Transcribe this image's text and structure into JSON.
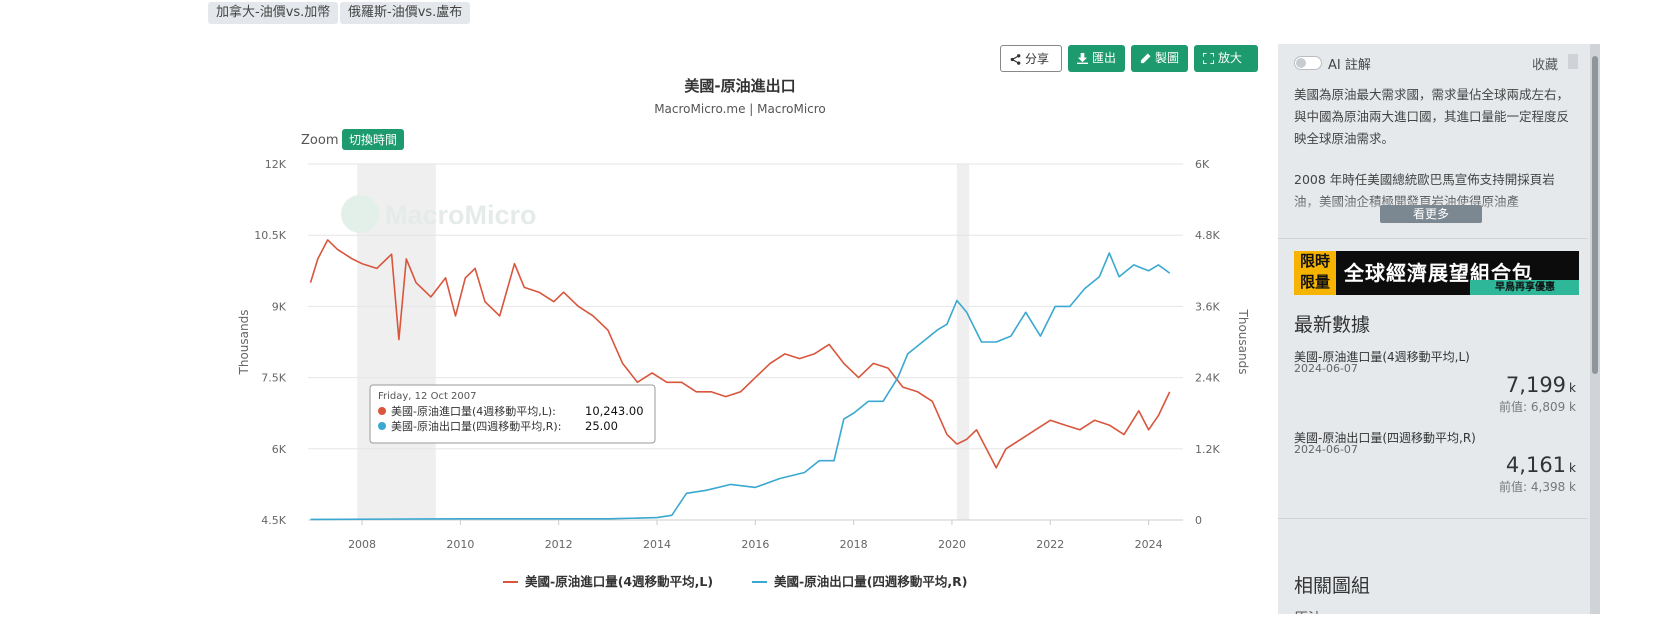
{
  "tags": [
    "加拿大-油價vs.加幣",
    "俄羅斯-油價vs.盧布"
  ],
  "toolbar": {
    "share": "分享",
    "export": "匯出",
    "draw": "製圖",
    "enlarge": "放大"
  },
  "chart_data": {
    "type": "line",
    "title": "美國-原油進出口",
    "subtitle": "MacroMicro.me | MacroMicro",
    "watermark": "MacroMicro",
    "zoom_label": "Zoom",
    "zoom_button": "切換時間",
    "left_axis": {
      "label": "Thousands",
      "ticks": [
        "4.5K",
        "6K",
        "7.5K",
        "9K",
        "10.5K",
        "12K"
      ],
      "range": [
        4500,
        12000
      ]
    },
    "right_axis": {
      "label": "Thousands",
      "ticks": [
        "0",
        "1.2K",
        "2.4K",
        "3.6K",
        "4.8K",
        "6K"
      ],
      "range": [
        0,
        6000
      ]
    },
    "x_axis": {
      "ticks": [
        "2008",
        "2010",
        "2012",
        "2014",
        "2016",
        "2018",
        "2020",
        "2022",
        "2024"
      ],
      "range": [
        2006.9,
        2024.7
      ]
    },
    "shaded_periods": [
      [
        2007.9,
        2009.5
      ],
      [
        2020.1,
        2020.35
      ]
    ],
    "series": [
      {
        "name": "美國-原油進口量(4週移動平均,L)",
        "color": "#d9553c",
        "axis": "left",
        "x": [
          2006.95,
          2007.1,
          2007.3,
          2007.5,
          2007.8,
          2008.0,
          2008.3,
          2008.6,
          2008.75,
          2008.9,
          2009.1,
          2009.4,
          2009.7,
          2009.9,
          2010.1,
          2010.3,
          2010.5,
          2010.8,
          2011.1,
          2011.3,
          2011.6,
          2011.9,
          2012.1,
          2012.4,
          2012.7,
          2013.0,
          2013.3,
          2013.6,
          2013.9,
          2014.2,
          2014.5,
          2014.8,
          2015.1,
          2015.4,
          2015.7,
          2016.0,
          2016.3,
          2016.6,
          2016.9,
          2017.2,
          2017.5,
          2017.8,
          2018.1,
          2018.4,
          2018.7,
          2019.0,
          2019.3,
          2019.6,
          2019.9,
          2020.1,
          2020.3,
          2020.5,
          2020.7,
          2020.9,
          2021.1,
          2021.4,
          2021.7,
          2022.0,
          2022.3,
          2022.6,
          2022.9,
          2023.2,
          2023.5,
          2023.8,
          2024.0,
          2024.2,
          2024.43
        ],
        "values": [
          9500,
          10000,
          10400,
          10200,
          10000,
          9900,
          9800,
          10100,
          8300,
          10000,
          9500,
          9200,
          9600,
          8800,
          9600,
          9800,
          9100,
          8800,
          9900,
          9400,
          9300,
          9100,
          9300,
          9000,
          8800,
          8500,
          7800,
          7400,
          7600,
          7400,
          7400,
          7200,
          7200,
          7100,
          7200,
          7500,
          7800,
          8000,
          7900,
          8000,
          8200,
          7800,
          7500,
          7800,
          7700,
          7300,
          7200,
          7000,
          6300,
          6100,
          6200,
          6400,
          6000,
          5600,
          6000,
          6200,
          6400,
          6600,
          6500,
          6400,
          6600,
          6500,
          6300,
          6800,
          6400,
          6700,
          7199
        ]
      },
      {
        "name": "美國-原油出口量(四週移動平均,R)",
        "color": "#3aa8d0",
        "axis": "right",
        "x": [
          2006.95,
          2010.0,
          2013.0,
          2014.0,
          2014.3,
          2014.6,
          2015.0,
          2015.5,
          2016.0,
          2016.5,
          2017.0,
          2017.3,
          2017.6,
          2017.8,
          2018.0,
          2018.3,
          2018.6,
          2018.9,
          2019.1,
          2019.4,
          2019.7,
          2019.9,
          2020.1,
          2020.3,
          2020.6,
          2020.9,
          2021.2,
          2021.5,
          2021.8,
          2022.1,
          2022.4,
          2022.7,
          2023.0,
          2023.2,
          2023.4,
          2023.7,
          2024.0,
          2024.2,
          2024.43
        ],
        "values": [
          10,
          20,
          20,
          40,
          80,
          450,
          500,
          600,
          550,
          700,
          800,
          1000,
          1000,
          1700,
          1800,
          2000,
          2000,
          2400,
          2800,
          3000,
          3200,
          3300,
          3700,
          3500,
          3000,
          3000,
          3100,
          3500,
          3100,
          3600,
          3600,
          3900,
          4100,
          4500,
          4100,
          4300,
          4200,
          4300,
          4161
        ]
      }
    ],
    "tooltip": {
      "date": "Friday, 12 Oct 2007",
      "rows": [
        {
          "label": "美國-原油進口量(4週移動平均,L):",
          "value": "10,243.00",
          "color": "#d9553c"
        },
        {
          "label": "美國-原油出口量(四週移動平均,R):",
          "value": "25.00",
          "color": "#3aa8d0"
        }
      ]
    },
    "legend_position": "bottom"
  },
  "panel": {
    "ai_label": "AI 註解",
    "favorite": "收藏",
    "description": [
      "美國為原油最大需求國，需求量佔全球兩成左右，與中國為原油兩大進口國，其進口量能一定程度反映全球原油需求。",
      "2008 年時任美國總統歐巴馬宣佈支持開採頁岩油，美國油企積極開發頁岩油使得原油產"
    ],
    "more": "看更多",
    "banner": {
      "tag": "限時限量",
      "title": "全球經濟展望組合包",
      "subtitle": "早鳥再享優惠"
    },
    "latest_title": "最新數據",
    "stats": [
      {
        "name": "美國-原油進口量(4週移動平均,L)",
        "date": "2024-06-07",
        "value": "7,199",
        "unit": "k",
        "prev": "前值: 6,809 k"
      },
      {
        "name": "美國-原油出口量(四週移動平均,R)",
        "date": "2024-06-07",
        "value": "4,161",
        "unit": "k",
        "prev": "前值: 4,398 k"
      }
    ],
    "related_title": "相關圖組",
    "related_item": "原油"
  }
}
